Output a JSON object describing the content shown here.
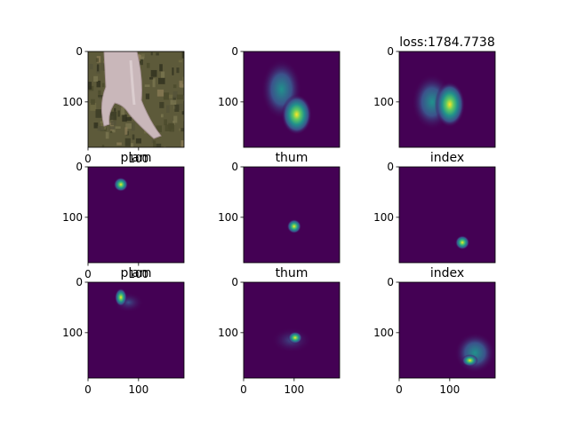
{
  "figure": {
    "background": "#ffffff",
    "colormap": "viridis",
    "colormap_stops": [
      "#440154",
      "#3b528b",
      "#21918c",
      "#5ec962",
      "#fde725"
    ]
  },
  "chart_data": [
    {
      "type": "heatmap",
      "title": "",
      "content": "photo-hand",
      "xticks": [
        0,
        100
      ],
      "yticks": [
        0,
        100
      ],
      "extent": [
        0,
        190
      ],
      "blobs": []
    },
    {
      "type": "heatmap",
      "title": "",
      "content": "heatmap",
      "xticks": [],
      "yticks": [
        0,
        100
      ],
      "extent": [
        0,
        190
      ],
      "blobs": [
        {
          "x": 105,
          "y": 125,
          "rx": 30,
          "ry": 40,
          "intensity": 1.0
        },
        {
          "x": 75,
          "y": 75,
          "rx": 40,
          "ry": 60,
          "intensity": 0.6
        }
      ]
    },
    {
      "type": "heatmap",
      "title": "loss:1784.7738",
      "content": "heatmap",
      "xticks": [],
      "yticks": [
        0,
        100
      ],
      "extent": [
        0,
        190
      ],
      "blobs": [
        {
          "x": 100,
          "y": 105,
          "rx": 30,
          "ry": 45,
          "intensity": 1.0
        },
        {
          "x": 65,
          "y": 100,
          "rx": 40,
          "ry": 55,
          "intensity": 0.5
        }
      ]
    },
    {
      "type": "heatmap",
      "title": "plam",
      "content": "heatmap",
      "xticks": [
        0,
        100
      ],
      "yticks": [
        0,
        100
      ],
      "extent": [
        0,
        190
      ],
      "blobs": [
        {
          "x": 65,
          "y": 35,
          "rx": 14,
          "ry": 14,
          "intensity": 1.0
        }
      ]
    },
    {
      "type": "heatmap",
      "title": "thum",
      "content": "heatmap",
      "xticks": [],
      "yticks": [
        0,
        100
      ],
      "extent": [
        0,
        190
      ],
      "blobs": [
        {
          "x": 100,
          "y": 118,
          "rx": 14,
          "ry": 14,
          "intensity": 1.0
        }
      ]
    },
    {
      "type": "heatmap",
      "title": "index",
      "content": "heatmap",
      "xticks": [],
      "yticks": [
        0,
        100
      ],
      "extent": [
        0,
        190
      ],
      "blobs": [
        {
          "x": 125,
          "y": 150,
          "rx": 14,
          "ry": 14,
          "intensity": 1.0
        }
      ]
    },
    {
      "type": "heatmap",
      "title": "plam",
      "content": "heatmap",
      "xticks": [
        0,
        100
      ],
      "yticks": [
        0,
        100
      ],
      "extent": [
        0,
        190
      ],
      "blobs": [
        {
          "x": 65,
          "y": 30,
          "rx": 12,
          "ry": 18,
          "intensity": 1.0
        },
        {
          "x": 80,
          "y": 40,
          "rx": 30,
          "ry": 20,
          "intensity": 0.35
        }
      ]
    },
    {
      "type": "heatmap",
      "title": "thum",
      "content": "heatmap",
      "xticks": [
        0,
        100
      ],
      "yticks": [
        0,
        100
      ],
      "extent": [
        0,
        190
      ],
      "blobs": [
        {
          "x": 102,
          "y": 110,
          "rx": 14,
          "ry": 12,
          "intensity": 1.0
        },
        {
          "x": 95,
          "y": 115,
          "rx": 40,
          "ry": 25,
          "intensity": 0.35
        }
      ]
    },
    {
      "type": "heatmap",
      "title": "index",
      "content": "heatmap",
      "xticks": [
        0,
        100
      ],
      "yticks": [
        0,
        100
      ],
      "extent": [
        0,
        190
      ],
      "blobs": [
        {
          "x": 140,
          "y": 155,
          "rx": 16,
          "ry": 12,
          "intensity": 1.0
        },
        {
          "x": 150,
          "y": 140,
          "rx": 40,
          "ry": 40,
          "intensity": 0.4
        }
      ]
    }
  ]
}
